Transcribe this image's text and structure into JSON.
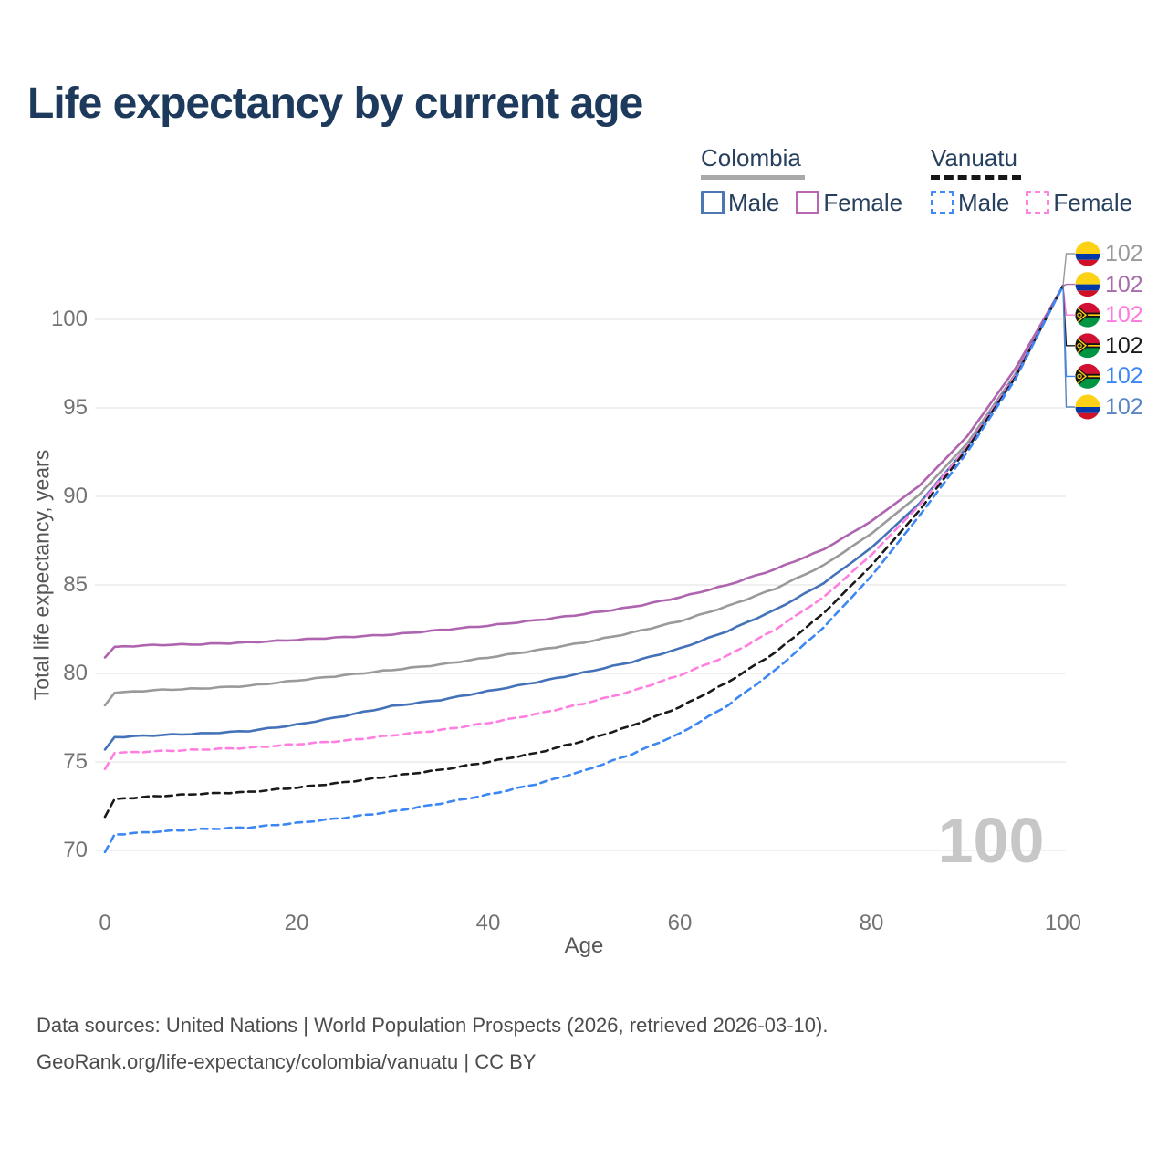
{
  "title": "Life expectancy by current age",
  "legend": {
    "groups": [
      {
        "country": "Colombia",
        "line_style": "solid",
        "underline_color": "#a9a9a9",
        "items": [
          {
            "label": "Male",
            "color": "#4b77b5",
            "dashed": false
          },
          {
            "label": "Female",
            "color": "#b768b1",
            "dashed": false
          }
        ]
      },
      {
        "country": "Vanuatu",
        "line_style": "dashed",
        "underline_color": "#161616",
        "items": [
          {
            "label": "Male",
            "color": "#418af5",
            "dashed": true
          },
          {
            "label": "Female",
            "color": "#ff83e2",
            "dashed": true
          }
        ]
      }
    ]
  },
  "chart_data": {
    "type": "line",
    "title": "Life expectancy by current age",
    "xlabel": "Age",
    "ylabel": "Total life expectancy, years",
    "x_ticks": [
      0,
      20,
      40,
      60,
      80,
      100
    ],
    "y_ticks": [
      70,
      75,
      80,
      85,
      90,
      95,
      100
    ],
    "xlim": [
      0,
      100
    ],
    "ylim": [
      69.5,
      102.5
    ],
    "grid": "horizontal",
    "legend_position": "top-right",
    "watermark": "100",
    "ages": [
      0,
      1,
      5,
      10,
      15,
      20,
      25,
      30,
      35,
      40,
      45,
      50,
      55,
      60,
      65,
      70,
      75,
      80,
      85,
      90,
      95,
      100
    ],
    "series": [
      {
        "name": "Colombia",
        "sex": "both",
        "color": "#9a9a9a",
        "dashed": false,
        "end_label": "102",
        "flag": "colombia",
        "values": [
          78.2,
          78.9,
          79.05,
          79.15,
          79.3,
          79.6,
          79.9,
          80.2,
          80.5,
          80.9,
          81.3,
          81.75,
          82.3,
          82.95,
          83.8,
          84.8,
          86.1,
          87.9,
          90.1,
          93.0,
          96.9,
          101.9
        ]
      },
      {
        "name": "Colombia",
        "sex": "female",
        "color": "#ae64ae",
        "dashed": false,
        "end_label": "102",
        "flag": "colombia",
        "values": [
          80.9,
          81.5,
          81.6,
          81.65,
          81.75,
          81.9,
          82.05,
          82.2,
          82.45,
          82.7,
          83.0,
          83.35,
          83.75,
          84.3,
          85.0,
          85.9,
          87.0,
          88.6,
          90.6,
          93.4,
          97.2,
          101.9
        ]
      },
      {
        "name": "Colombia",
        "sex": "male",
        "color": "#4472b8",
        "dashed": false,
        "end_label": "102",
        "flag": "colombia",
        "values": [
          75.7,
          76.4,
          76.5,
          76.6,
          76.75,
          77.1,
          77.6,
          78.15,
          78.5,
          79.0,
          79.5,
          80.05,
          80.65,
          81.4,
          82.4,
          83.6,
          85.1,
          87.1,
          89.6,
          92.8,
          96.8,
          101.9
        ]
      },
      {
        "name": "Vanuatu",
        "sex": "female",
        "color": "#ff7fe1",
        "dashed": true,
        "end_label": "102",
        "flag": "vanuatu",
        "values": [
          74.6,
          75.5,
          75.6,
          75.7,
          75.8,
          76.0,
          76.2,
          76.5,
          76.8,
          77.2,
          77.7,
          78.3,
          79.0,
          79.9,
          81.0,
          82.5,
          84.3,
          86.7,
          89.5,
          92.8,
          96.8,
          101.9
        ]
      },
      {
        "name": "Vanuatu",
        "sex": "both",
        "color": "#1a1a1a",
        "dashed": true,
        "end_label": "102",
        "flag": "vanuatu",
        "values": [
          71.9,
          72.9,
          73.05,
          73.2,
          73.3,
          73.55,
          73.85,
          74.2,
          74.55,
          75.0,
          75.5,
          76.2,
          77.05,
          78.1,
          79.5,
          81.2,
          83.4,
          86.1,
          89.2,
          92.7,
          96.7,
          101.9
        ]
      },
      {
        "name": "Vanuatu",
        "sex": "male",
        "color": "#3d87f5",
        "dashed": true,
        "end_label": "102",
        "flag": "vanuatu",
        "values": [
          69.9,
          70.9,
          71.05,
          71.2,
          71.3,
          71.55,
          71.85,
          72.2,
          72.65,
          73.15,
          73.75,
          74.5,
          75.45,
          76.6,
          78.2,
          80.2,
          82.6,
          85.5,
          88.9,
          92.5,
          96.6,
          101.9
        ]
      }
    ]
  },
  "end_labels": [
    {
      "value": "102",
      "color": "#9a9a9a",
      "flag": "colombia",
      "series": "Colombia both sexes"
    },
    {
      "value": "102",
      "color": "#a96ba9",
      "flag": "colombia",
      "series": "Colombia female"
    },
    {
      "value": "102",
      "color": "#ff7ade",
      "flag": "vanuatu",
      "series": "Vanuatu female"
    },
    {
      "value": "102",
      "color": "#1a1a1a",
      "flag": "vanuatu",
      "series": "Vanuatu both sexes"
    },
    {
      "value": "102",
      "color": "#3d87f5",
      "flag": "vanuatu",
      "series": "Vanuatu male"
    },
    {
      "value": "102",
      "color": "#5b84c4",
      "flag": "colombia",
      "series": "Colombia male"
    }
  ],
  "flag_colors": {
    "colombia": {
      "yellow": "#FCD116",
      "blue": "#0038A8",
      "red": "#CE1126"
    },
    "vanuatu": {
      "red": "#D21034",
      "green": "#009543",
      "black": "#131313",
      "yellow": "#FDCE12"
    }
  },
  "footer": {
    "line1": "Data sources: United Nations | World Population Prospects (2026, retrieved 2026-03-10).",
    "line2": "GeoRank.org/life-expectancy/colombia/vanuatu | CC BY"
  }
}
